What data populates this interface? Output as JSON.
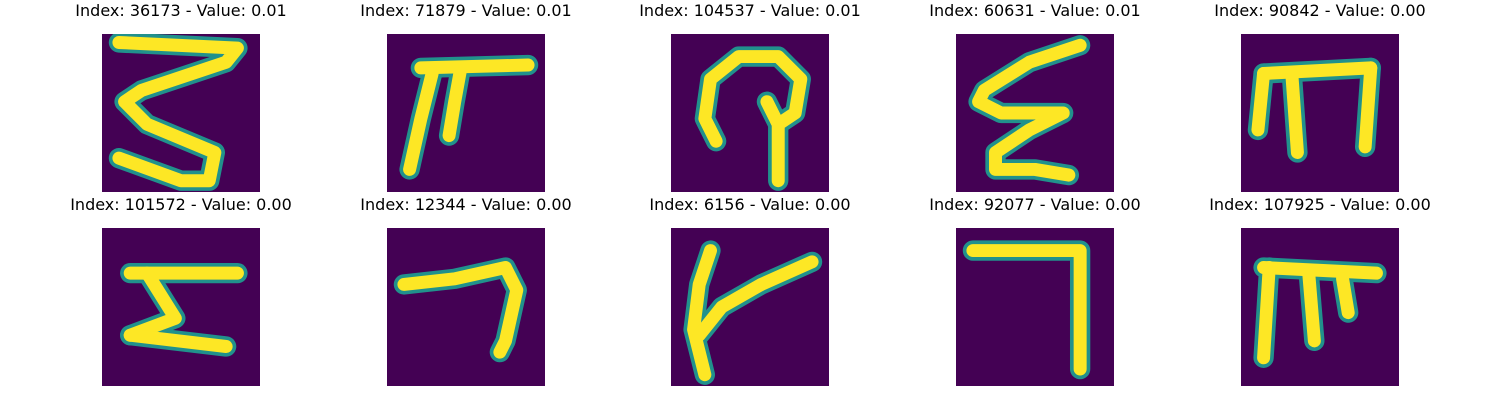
{
  "figure": {
    "panels": [
      {
        "title": "Index: 36173 - Value: 0.01",
        "glyph": "s-zigzag"
      },
      {
        "title": "Index: 71879 - Value: 0.01",
        "glyph": "table-bar"
      },
      {
        "title": "Index: 104537 - Value: 0.01",
        "glyph": "hook-loop"
      },
      {
        "title": "Index: 60631 - Value: 0.01",
        "glyph": "epsilon-zigzag"
      },
      {
        "title": "Index: 90842 - Value: 0.00",
        "glyph": "triple-prong"
      },
      {
        "title": "Index: 101572 - Value: 0.00",
        "glyph": "z-shape"
      },
      {
        "title": "Index: 12344 - Value: 0.00",
        "glyph": "seven-curve"
      },
      {
        "title": "Index: 6156 - Value: 0.00",
        "glyph": "cross-slant"
      },
      {
        "title": "Index: 92077 - Value: 0.00",
        "glyph": "seven-right-angle"
      },
      {
        "title": "Index: 107925 - Value: 0.00",
        "glyph": "pi-shape"
      }
    ],
    "colors": {
      "background": "#440154",
      "stroke_edge": "#21918c",
      "stroke_core": "#fde725"
    }
  }
}
